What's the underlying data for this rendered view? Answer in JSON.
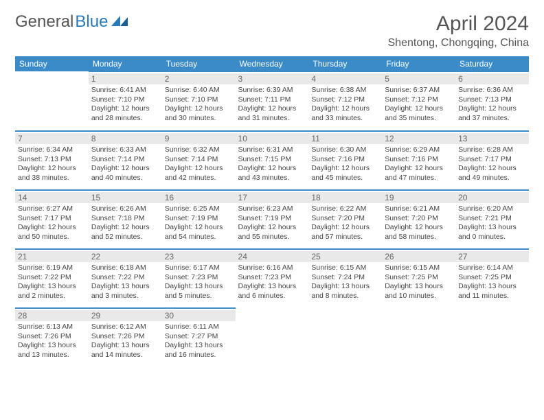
{
  "brand": {
    "first": "General",
    "second": "Blue",
    "accent": "#2a7ab9"
  },
  "title": "April 2024",
  "location": "Shentong, Chongqing, China",
  "colors": {
    "header_bg": "#3b8bc8",
    "header_text": "#ffffff",
    "daynum_bg": "#e9e9e9",
    "border": "#3b8bc8",
    "text": "#444444",
    "background": "#ffffff"
  },
  "weekdays": [
    "Sunday",
    "Monday",
    "Tuesday",
    "Wednesday",
    "Thursday",
    "Friday",
    "Saturday"
  ],
  "weeks": [
    [
      null,
      {
        "n": "1",
        "sr": "Sunrise: 6:41 AM",
        "ss": "Sunset: 7:10 PM",
        "dl1": "Daylight: 12 hours",
        "dl2": "and 28 minutes."
      },
      {
        "n": "2",
        "sr": "Sunrise: 6:40 AM",
        "ss": "Sunset: 7:10 PM",
        "dl1": "Daylight: 12 hours",
        "dl2": "and 30 minutes."
      },
      {
        "n": "3",
        "sr": "Sunrise: 6:39 AM",
        "ss": "Sunset: 7:11 PM",
        "dl1": "Daylight: 12 hours",
        "dl2": "and 31 minutes."
      },
      {
        "n": "4",
        "sr": "Sunrise: 6:38 AM",
        "ss": "Sunset: 7:12 PM",
        "dl1": "Daylight: 12 hours",
        "dl2": "and 33 minutes."
      },
      {
        "n": "5",
        "sr": "Sunrise: 6:37 AM",
        "ss": "Sunset: 7:12 PM",
        "dl1": "Daylight: 12 hours",
        "dl2": "and 35 minutes."
      },
      {
        "n": "6",
        "sr": "Sunrise: 6:36 AM",
        "ss": "Sunset: 7:13 PM",
        "dl1": "Daylight: 12 hours",
        "dl2": "and 37 minutes."
      }
    ],
    [
      {
        "n": "7",
        "sr": "Sunrise: 6:34 AM",
        "ss": "Sunset: 7:13 PM",
        "dl1": "Daylight: 12 hours",
        "dl2": "and 38 minutes."
      },
      {
        "n": "8",
        "sr": "Sunrise: 6:33 AM",
        "ss": "Sunset: 7:14 PM",
        "dl1": "Daylight: 12 hours",
        "dl2": "and 40 minutes."
      },
      {
        "n": "9",
        "sr": "Sunrise: 6:32 AM",
        "ss": "Sunset: 7:14 PM",
        "dl1": "Daylight: 12 hours",
        "dl2": "and 42 minutes."
      },
      {
        "n": "10",
        "sr": "Sunrise: 6:31 AM",
        "ss": "Sunset: 7:15 PM",
        "dl1": "Daylight: 12 hours",
        "dl2": "and 43 minutes."
      },
      {
        "n": "11",
        "sr": "Sunrise: 6:30 AM",
        "ss": "Sunset: 7:16 PM",
        "dl1": "Daylight: 12 hours",
        "dl2": "and 45 minutes."
      },
      {
        "n": "12",
        "sr": "Sunrise: 6:29 AM",
        "ss": "Sunset: 7:16 PM",
        "dl1": "Daylight: 12 hours",
        "dl2": "and 47 minutes."
      },
      {
        "n": "13",
        "sr": "Sunrise: 6:28 AM",
        "ss": "Sunset: 7:17 PM",
        "dl1": "Daylight: 12 hours",
        "dl2": "and 49 minutes."
      }
    ],
    [
      {
        "n": "14",
        "sr": "Sunrise: 6:27 AM",
        "ss": "Sunset: 7:17 PM",
        "dl1": "Daylight: 12 hours",
        "dl2": "and 50 minutes."
      },
      {
        "n": "15",
        "sr": "Sunrise: 6:26 AM",
        "ss": "Sunset: 7:18 PM",
        "dl1": "Daylight: 12 hours",
        "dl2": "and 52 minutes."
      },
      {
        "n": "16",
        "sr": "Sunrise: 6:25 AM",
        "ss": "Sunset: 7:19 PM",
        "dl1": "Daylight: 12 hours",
        "dl2": "and 54 minutes."
      },
      {
        "n": "17",
        "sr": "Sunrise: 6:23 AM",
        "ss": "Sunset: 7:19 PM",
        "dl1": "Daylight: 12 hours",
        "dl2": "and 55 minutes."
      },
      {
        "n": "18",
        "sr": "Sunrise: 6:22 AM",
        "ss": "Sunset: 7:20 PM",
        "dl1": "Daylight: 12 hours",
        "dl2": "and 57 minutes."
      },
      {
        "n": "19",
        "sr": "Sunrise: 6:21 AM",
        "ss": "Sunset: 7:20 PM",
        "dl1": "Daylight: 12 hours",
        "dl2": "and 58 minutes."
      },
      {
        "n": "20",
        "sr": "Sunrise: 6:20 AM",
        "ss": "Sunset: 7:21 PM",
        "dl1": "Daylight: 13 hours",
        "dl2": "and 0 minutes."
      }
    ],
    [
      {
        "n": "21",
        "sr": "Sunrise: 6:19 AM",
        "ss": "Sunset: 7:22 PM",
        "dl1": "Daylight: 13 hours",
        "dl2": "and 2 minutes."
      },
      {
        "n": "22",
        "sr": "Sunrise: 6:18 AM",
        "ss": "Sunset: 7:22 PM",
        "dl1": "Daylight: 13 hours",
        "dl2": "and 3 minutes."
      },
      {
        "n": "23",
        "sr": "Sunrise: 6:17 AM",
        "ss": "Sunset: 7:23 PM",
        "dl1": "Daylight: 13 hours",
        "dl2": "and 5 minutes."
      },
      {
        "n": "24",
        "sr": "Sunrise: 6:16 AM",
        "ss": "Sunset: 7:23 PM",
        "dl1": "Daylight: 13 hours",
        "dl2": "and 6 minutes."
      },
      {
        "n": "25",
        "sr": "Sunrise: 6:15 AM",
        "ss": "Sunset: 7:24 PM",
        "dl1": "Daylight: 13 hours",
        "dl2": "and 8 minutes."
      },
      {
        "n": "26",
        "sr": "Sunrise: 6:15 AM",
        "ss": "Sunset: 7:25 PM",
        "dl1": "Daylight: 13 hours",
        "dl2": "and 10 minutes."
      },
      {
        "n": "27",
        "sr": "Sunrise: 6:14 AM",
        "ss": "Sunset: 7:25 PM",
        "dl1": "Daylight: 13 hours",
        "dl2": "and 11 minutes."
      }
    ],
    [
      {
        "n": "28",
        "sr": "Sunrise: 6:13 AM",
        "ss": "Sunset: 7:26 PM",
        "dl1": "Daylight: 13 hours",
        "dl2": "and 13 minutes."
      },
      {
        "n": "29",
        "sr": "Sunrise: 6:12 AM",
        "ss": "Sunset: 7:26 PM",
        "dl1": "Daylight: 13 hours",
        "dl2": "and 14 minutes."
      },
      {
        "n": "30",
        "sr": "Sunrise: 6:11 AM",
        "ss": "Sunset: 7:27 PM",
        "dl1": "Daylight: 13 hours",
        "dl2": "and 16 minutes."
      },
      null,
      null,
      null,
      null
    ]
  ]
}
